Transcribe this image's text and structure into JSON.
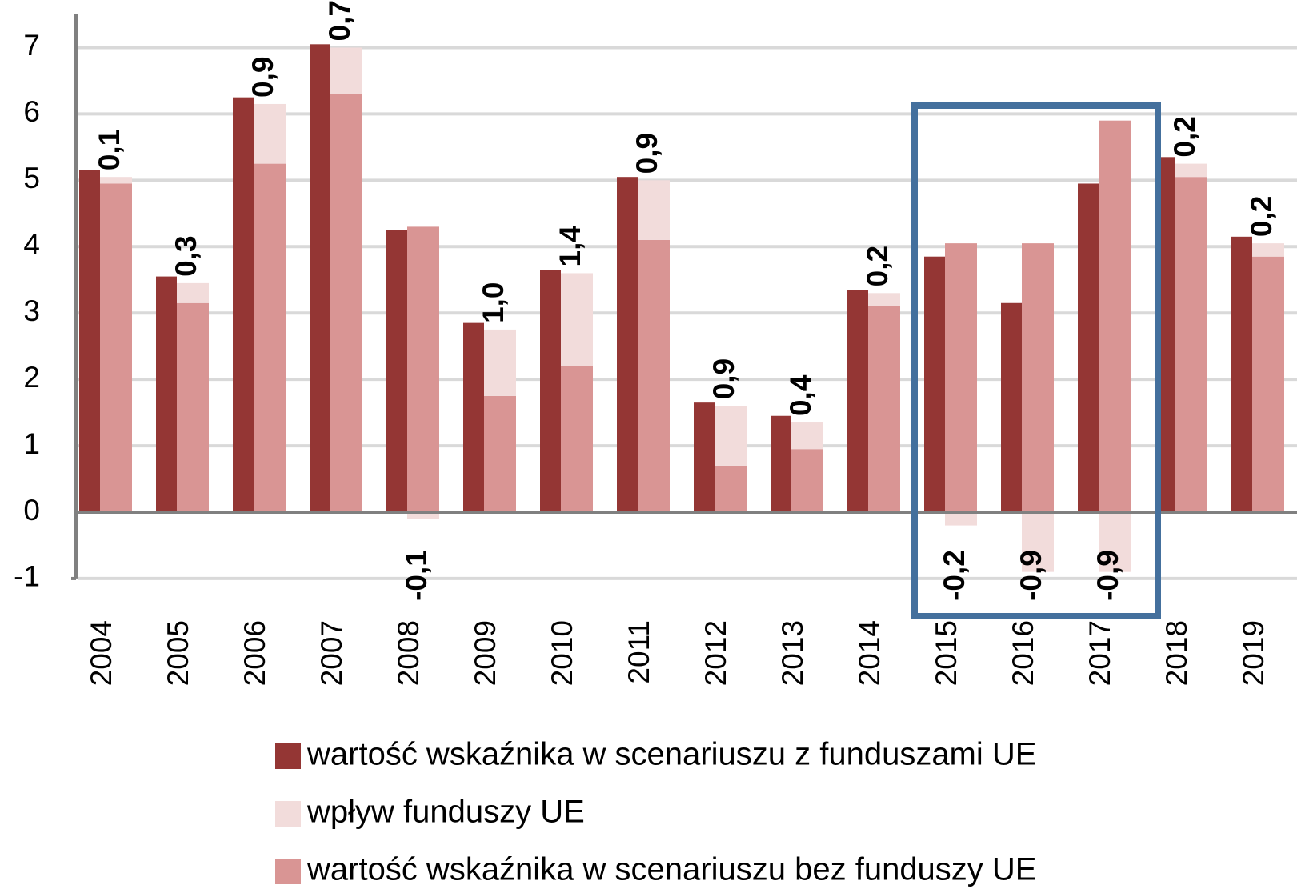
{
  "chart_data": {
    "type": "bar",
    "categories": [
      "2004",
      "2005",
      "2006",
      "2007",
      "2008",
      "2009",
      "2010",
      "2011",
      "2012",
      "2013",
      "2014",
      "2015",
      "2016",
      "2017",
      "2018",
      "2019"
    ],
    "series": [
      {
        "name": "wartość wskaźnika w scenariuszu z funduszami UE",
        "color": "#943634",
        "values": [
          5.15,
          3.55,
          6.25,
          7.05,
          4.25,
          2.85,
          3.65,
          5.05,
          1.65,
          1.45,
          3.35,
          3.85,
          3.15,
          4.95,
          5.35,
          4.15
        ]
      },
      {
        "name": "wpływ funduszy UE",
        "color": "#f2dcdb",
        "values": [
          0.1,
          0.3,
          0.9,
          0.7,
          -0.1,
          1.0,
          1.4,
          0.9,
          0.9,
          0.4,
          0.2,
          -0.2,
          -0.9,
          -0.9,
          0.2,
          0.2
        ],
        "value_labels": [
          "0,1",
          "0,3",
          "0,9",
          "0,7",
          "-0,1",
          "1,0",
          "1,4",
          "0,9",
          "0,9",
          "0,4",
          "0,2",
          "-0,2",
          "-0,9",
          "-0,9",
          "0,2",
          "0,2"
        ]
      },
      {
        "name": "wartość wskaźnika w scenariuszu bez funduszy UE",
        "color": "#d99594",
        "values": [
          4.95,
          3.15,
          5.25,
          6.3,
          4.3,
          1.75,
          2.2,
          4.1,
          0.7,
          0.95,
          3.1,
          4.05,
          4.05,
          5.9,
          5.05,
          3.85
        ]
      }
    ],
    "ylim": [
      -1,
      7.5
    ],
    "yticks": [
      -1,
      0,
      1,
      2,
      3,
      4,
      5,
      6,
      7
    ],
    "grid": true
  }
}
